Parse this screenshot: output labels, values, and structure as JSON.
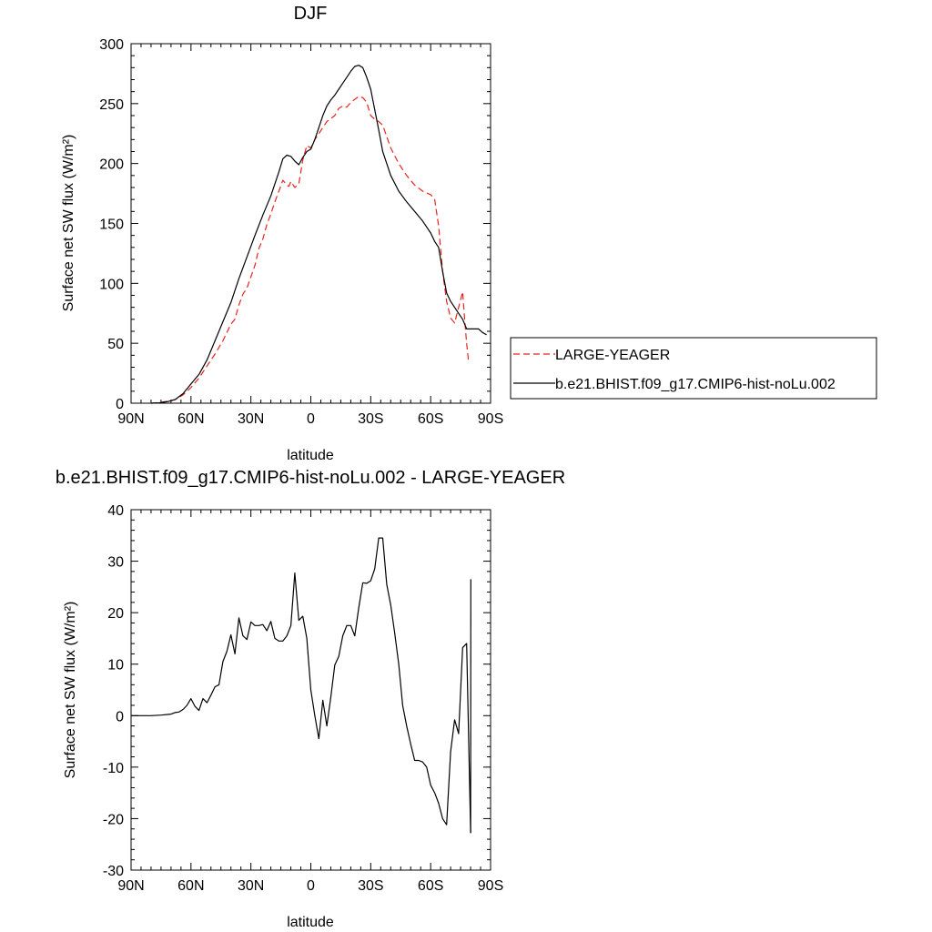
{
  "chart_data": [
    {
      "type": "line",
      "title": "DJF",
      "xlabel": "latitude",
      "ylabel": "Surface net SW flux (W/m²)",
      "xlim": [
        90,
        -90
      ],
      "ylim": [
        0,
        300
      ],
      "x_tick_values": [
        90,
        60,
        30,
        0,
        -30,
        -60,
        -90
      ],
      "x_tick_labels": [
        "90N",
        "60N",
        "30N",
        "0",
        "30S",
        "60S",
        "90S"
      ],
      "y_tick_values": [
        0,
        50,
        100,
        150,
        200,
        250,
        300
      ],
      "y_tick_labels": [
        "0",
        "50",
        "100",
        "150",
        "200",
        "250",
        "300"
      ],
      "legend": {
        "placement": "right",
        "entries": [
          {
            "label": "LARGE-YEAGER",
            "color": "#e8231f",
            "dash": "dashed"
          },
          {
            "label": "b.e21.BHIST.f09_g17.CMIP6-hist-noLu.002",
            "color": "#000000",
            "dash": "solid"
          }
        ]
      },
      "series": [
        {
          "name": "LARGE-YEAGER",
          "color": "#e8231f",
          "dash": "dashed",
          "x": [
            80,
            76,
            72,
            68,
            64,
            60,
            56,
            52,
            48,
            44,
            40,
            38,
            36,
            34,
            32,
            28,
            26,
            24,
            22,
            20,
            18,
            16,
            14,
            12,
            11,
            10,
            8,
            6,
            4,
            2,
            0,
            -2,
            -4,
            -8,
            -12,
            -14,
            -16,
            -18,
            -20,
            -24,
            -26,
            -28,
            -30,
            -32,
            -34,
            -36,
            -40,
            -44,
            -48,
            -52,
            -56,
            -60,
            -62,
            -64,
            -66,
            -68,
            -70,
            -72,
            -74,
            -76,
            -77,
            -78,
            -79
          ],
          "y": [
            0,
            0.5,
            1.5,
            3,
            7,
            13,
            21,
            31,
            41,
            52,
            66,
            70,
            82,
            91,
            96,
            115,
            129,
            137,
            149,
            158,
            168,
            177,
            186,
            182,
            181,
            185,
            180,
            183,
            203,
            215,
            213,
            220,
            225,
            235,
            240,
            246,
            248,
            247,
            251,
            256,
            255,
            251,
            240,
            237,
            235,
            232,
            213,
            200,
            190,
            182,
            177,
            174,
            170,
            148,
            110,
            85,
            71,
            67,
            80,
            93,
            70,
            50,
            34
          ]
        },
        {
          "name": "b.e21.BHIST.f09_g17.CMIP6-hist-noLu.002",
          "color": "#000000",
          "dash": "solid",
          "x": [
            80,
            76,
            72,
            68,
            64,
            60,
            56,
            52,
            48,
            44,
            40,
            36,
            32,
            28,
            24,
            20,
            16,
            14,
            12,
            10,
            8,
            6,
            4,
            2,
            0,
            -2,
            -4,
            -6,
            -8,
            -10,
            -12,
            -14,
            -16,
            -18,
            -20,
            -22,
            -24,
            -26,
            -28,
            -30,
            -32,
            -34,
            -36,
            -40,
            -44,
            -48,
            -52,
            -56,
            -60,
            -62,
            -64,
            -66,
            -68,
            -70,
            -72,
            -74,
            -76,
            -78,
            -80,
            -82,
            -84,
            -86,
            -88
          ],
          "y": [
            0,
            0.3,
            1.2,
            3,
            8,
            16,
            24,
            36,
            52,
            68,
            84,
            104,
            122,
            140,
            157,
            173,
            193,
            204,
            207,
            206,
            202,
            199,
            205,
            210,
            212,
            220,
            230,
            240,
            248,
            253,
            257,
            262,
            267,
            272,
            277,
            281,
            282,
            280,
            272,
            262,
            245,
            228,
            210,
            190,
            177,
            168,
            160,
            152,
            142,
            135,
            130,
            110,
            92,
            85,
            80,
            75,
            70,
            62,
            62,
            62,
            62,
            59,
            57
          ]
        }
      ]
    },
    {
      "type": "line",
      "title": "b.e21.BHIST.f09_g17.CMIP6-hist-noLu.002 - LARGE-YEAGER",
      "xlabel": "latitude",
      "ylabel": "Surface net SW flux (W/m²)",
      "xlim": [
        90,
        -90
      ],
      "ylim": [
        -30,
        40
      ],
      "x_tick_values": [
        90,
        60,
        30,
        0,
        -30,
        -60,
        -90
      ],
      "x_tick_labels": [
        "90N",
        "60N",
        "30N",
        "0",
        "30S",
        "60S",
        "90S"
      ],
      "y_tick_values": [
        -30,
        -20,
        -10,
        0,
        10,
        20,
        30,
        40
      ],
      "y_tick_labels": [
        "-30",
        "-20",
        "-10",
        "0",
        "10",
        "20",
        "30",
        "40"
      ],
      "series": [
        {
          "color": "#000000",
          "dash": "solid",
          "x": [
            90,
            80,
            75,
            70,
            68,
            66,
            64,
            62,
            60,
            58,
            56,
            54,
            52,
            50,
            48,
            46,
            44,
            42,
            40,
            38,
            36,
            34,
            32,
            30,
            28,
            26,
            24,
            22,
            20,
            18,
            16,
            14,
            12,
            10,
            8,
            6,
            4,
            2,
            0,
            -2,
            -4,
            -6,
            -8,
            -10,
            -12,
            -14,
            -16,
            -18,
            -20,
            -22,
            -24,
            -26,
            -28,
            -30,
            -32,
            -34,
            -36,
            -38,
            -40,
            -42,
            -44,
            -46,
            -48,
            -50,
            -52,
            -54,
            -56,
            -58,
            -60,
            -62,
            -64,
            -66,
            -68,
            -70,
            -72,
            -74,
            -76,
            -78,
            -80
          ],
          "y": [
            0,
            0,
            0.1,
            0.3,
            0.6,
            0.7,
            1.2,
            2,
            3.3,
            1.8,
            1,
            3.3,
            2.5,
            4,
            5.6,
            6,
            10.5,
            12.5,
            15.7,
            12,
            19,
            15.5,
            14.8,
            18.2,
            17.5,
            17.5,
            17.7,
            16.5,
            18.3,
            15,
            14.5,
            14.5,
            15.5,
            17.5,
            27.7,
            18.5,
            19.3,
            15,
            5,
            0,
            -4.5,
            3,
            -2,
            3.5,
            9.8,
            11.5,
            15.5,
            17.5,
            17.5,
            15.5,
            21,
            25.8,
            25.7,
            26.2,
            28.5,
            34.5,
            34.5,
            25.5,
            21.5,
            16,
            10,
            2,
            -2,
            -5.5,
            -8.7,
            -8.7,
            -9,
            -10,
            -13.5,
            -15,
            -17,
            -20,
            -21.2,
            -7,
            -0.8,
            -3.5,
            13.2,
            14,
            -22.8
          ]
        },
        {
          "x": [
            -80,
            -80.1
          ],
          "y": [
            -22.8,
            26.5
          ]
        }
      ]
    }
  ]
}
